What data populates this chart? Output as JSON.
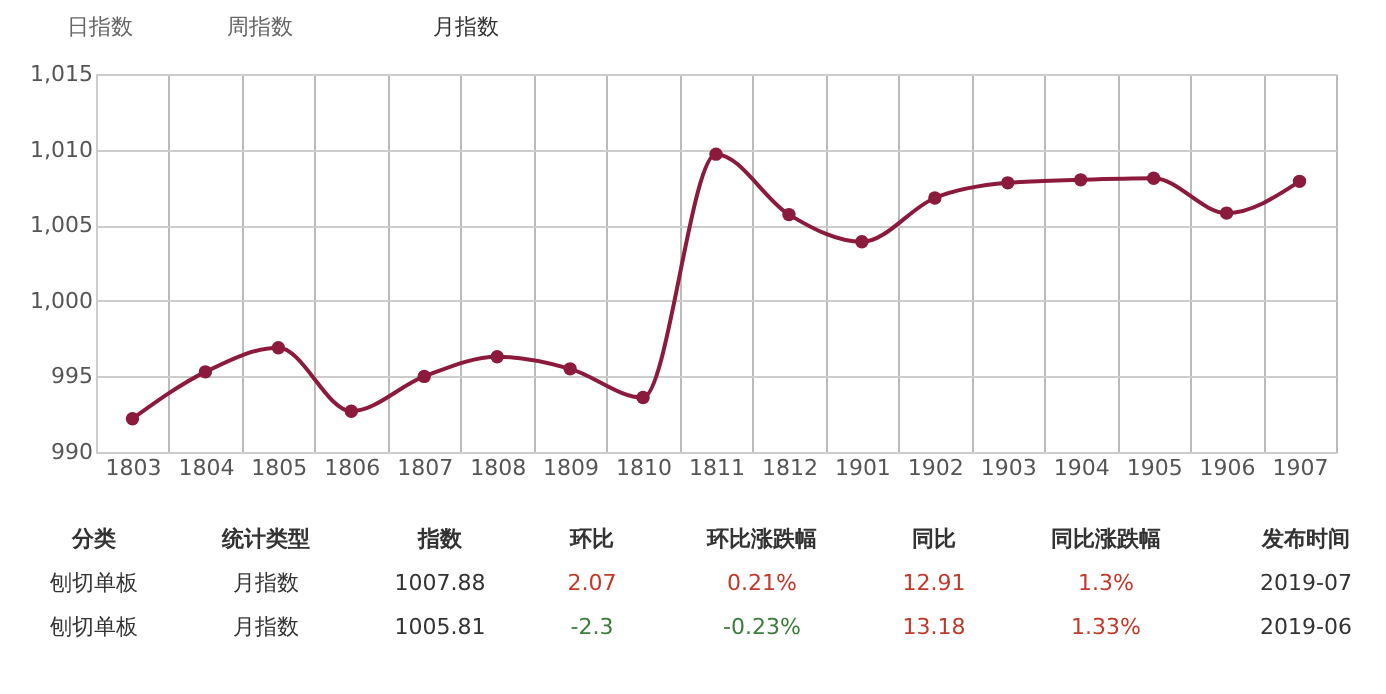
{
  "chart_data": {
    "type": "line",
    "categories": [
      "1803",
      "1804",
      "1805",
      "1806",
      "1807",
      "1808",
      "1809",
      "1810",
      "1811",
      "1812",
      "1901",
      "1902",
      "1903",
      "1904",
      "1905",
      "1906",
      "1907"
    ],
    "series": [
      {
        "color": "#8b1a3c",
        "values": [
          992.2,
          995.3,
          996.9,
          992.7,
          995.0,
          996.3,
          995.5,
          993.6,
          1009.7,
          1005.7,
          1003.9,
          1006.8,
          1007.8,
          1008.0,
          1008.1,
          1005.8,
          1007.9
        ]
      }
    ],
    "ylim": [
      990,
      1015
    ],
    "yticks": [
      990,
      {
        "value": 995,
        "label": "995"
      },
      {
        "value": 1000,
        "label": "1,000"
      },
      {
        "value": 1005,
        "label": "1,005"
      },
      {
        "value": 1010,
        "label": "1,010"
      },
      {
        "value": 1015,
        "label": "1,015"
      }
    ],
    "grid": true,
    "marker": "circle",
    "line_style": "solid",
    "legend": false,
    "annotations": [
      "日指数",
      "周指数",
      "月指数",
      "分类",
      "统计类型",
      "指数",
      "环比",
      "环比涨跌幅",
      "同比",
      "同比涨跌幅",
      "发布时间",
      "刨切单板",
      "月指数",
      "1007.88",
      "2.07",
      "0.21%",
      "12.91",
      "1.3%",
      "2019-07",
      "刨切单板",
      "月指数",
      "1005.81",
      "-2.3",
      "-0.23%",
      "13.18",
      "1.33%",
      "2019-06"
    ]
  }
}
